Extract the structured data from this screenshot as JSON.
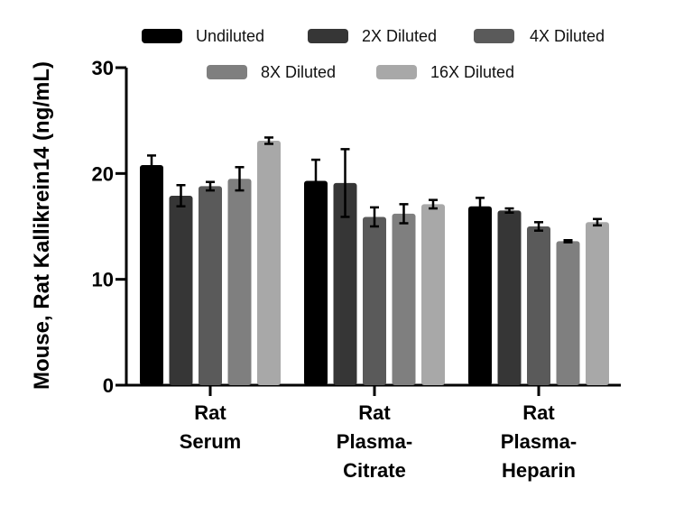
{
  "chart_data": {
    "type": "bar",
    "title": "",
    "xlabel": "",
    "ylabel": "Mouse, Rat Kallikrein14 (ng/mL)",
    "ylim": [
      0,
      30
    ],
    "yticks": [
      "0",
      "10",
      "20",
      "30"
    ],
    "ytick_values": [
      0,
      10,
      20,
      30
    ],
    "legend_position": "top",
    "categories": [
      {
        "lines": [
          "Rat",
          "Serum"
        ]
      },
      {
        "lines": [
          "Rat",
          "Plasma-",
          "Citrate"
        ]
      },
      {
        "lines": [
          "Rat",
          "Plasma-",
          "Heparin"
        ]
      }
    ],
    "series": [
      {
        "name": "Undiluted",
        "color": "#000000",
        "values": [
          20.8,
          19.3,
          16.9
        ],
        "errors": [
          0.9,
          2.0,
          0.8
        ]
      },
      {
        "name": "2X Diluted",
        "color": "#363636",
        "values": [
          17.9,
          19.1,
          16.5
        ],
        "errors": [
          1.0,
          3.2,
          0.2
        ]
      },
      {
        "name": "4X Diluted",
        "color": "#5a5a5a",
        "values": [
          18.8,
          15.9,
          15.0
        ],
        "errors": [
          0.4,
          0.9,
          0.4
        ]
      },
      {
        "name": "8X Diluted",
        "color": "#7f7f7f",
        "values": [
          19.5,
          16.2,
          13.6
        ],
        "errors": [
          1.1,
          0.9,
          0.1
        ]
      },
      {
        "name": "16X Diluted",
        "color": "#a8a8a8",
        "values": [
          23.1,
          17.1,
          15.4
        ],
        "errors": [
          0.3,
          0.4,
          0.3
        ]
      }
    ]
  }
}
